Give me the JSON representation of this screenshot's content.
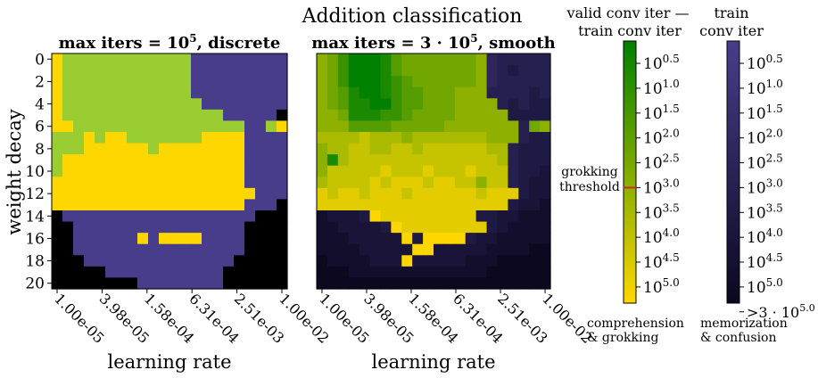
{
  "suptitle": "Addition classification",
  "chart_data": [
    {
      "type": "heatmap",
      "title": "max iters = 10^5, discrete",
      "title_parts": {
        "prefix": "max iters = 10",
        "exp": "5",
        "suffix": ", discrete"
      },
      "xlabel": "learning rate",
      "ylabel": "weight decay",
      "xticks": [
        "1.00e-05",
        "3.98e-05",
        "1.58e-04",
        "6.31e-04",
        "2.51e-03",
        "1.00e-02"
      ],
      "yticks": [
        "0",
        "2",
        "4",
        "6",
        "8",
        "10",
        "12",
        "14",
        "16",
        "18",
        "20"
      ],
      "legend_key": {
        "G": "comprehension",
        "Y": "grokking",
        "P": "memorization",
        "K": "confusion"
      },
      "colors": {
        "G": "#9acd32",
        "Y": "#ffd700",
        "P": "#483d8b",
        "K": "#000000"
      },
      "grid": [
        "YGGGGGGGGGGGGPPPPPPPPP",
        "YGGGGGGGGGGGGPPPPPPPPP",
        "YGGGGGGGGGGGGPPPPPPPPP",
        "YGGGGGGGGGGGGPPPPPPPPP",
        "YGGGGGGGGGGGGGPPPPPPPP",
        "YGGGGGGGGGGGGGGGPPPPPK",
        "YYGGGGGGGGGGGGGGGGPPGY",
        "GGGYGYYGGGGGGGYYYYPPPP",
        "GGGYYYYYYGYYYYYYYYPPPP",
        "GYYYYYYYYYYYYYYYYYPPPP",
        "GYYYYYYYYYYYYYYYYYPPPP",
        "YYYYYYYYYYYYYYYYYYPPPP",
        "YYYYYYYYYYYYYYYYYYYPPP",
        "YYYYYYYYYYYYYYYYYYPPPK",
        "KPPPPPPPPPPPPPPPPPPKKK",
        "KKPPPPPPPPPPPPPPPPKKKK",
        "KKPPPPPPYPYYYYPPPPKKKK",
        "KKPPPPPPPPPPPPPPPPKKKK",
        "KKKPPPPPPPPPPPPPPKKKKK",
        "KKKKKPPPPPPPPPPPKKKKKK",
        "KKKKKKKKPPPPPPPPKKKKKK"
      ]
    },
    {
      "type": "heatmap",
      "title": "max iters = 3·10^5, smooth",
      "title_parts": {
        "prefix": "max iters = 3 · 10",
        "exp": "5",
        "suffix": ", smooth"
      },
      "xlabel": "learning rate",
      "xticks": [
        "1.00e-05",
        "3.98e-05",
        "1.58e-04",
        "6.31e-04",
        "2.51e-03",
        "1.00e-02"
      ],
      "yticks_visible": false,
      "value_encoding": "G0-G9 = green scale, dark green (0) to yellow (9); P0-P9 = dark scale, purple (0) to black (9)",
      "green_scale_range": [
        "#008000",
        "#ffd700"
      ],
      "dark_scale_range": [
        "#483d8b",
        "#0b0820"
      ],
      "grid": [
        [
          "G5",
          "G4",
          "G2",
          "G0",
          "G0",
          "G0",
          "G1",
          "G3",
          "G4",
          "G4",
          "G4",
          "G4",
          "G4",
          "G4",
          "G4",
          "G5",
          "P4",
          "P5",
          "P5",
          "P5",
          "P5",
          "P5"
        ],
        [
          "G5",
          "G4",
          "G2",
          "G0",
          "G0",
          "G0",
          "G1",
          "G3",
          "G4",
          "G4",
          "G4",
          "G4",
          "G4",
          "G4",
          "G4",
          "G5",
          "P4",
          "P5",
          "P6",
          "P5",
          "P5",
          "P5"
        ],
        [
          "G5",
          "G4",
          "G2",
          "G0",
          "G0",
          "G0",
          "G1",
          "G2",
          "G3",
          "G4",
          "G4",
          "G4",
          "G4",
          "G4",
          "G4",
          "G5",
          "P4",
          "P5",
          "P5",
          "P5",
          "P5",
          "P5"
        ],
        [
          "G5",
          "G4",
          "G3",
          "G1",
          "G0",
          "G0",
          "G1",
          "G2",
          "G3",
          "G3",
          "G4",
          "G4",
          "G4",
          "G5",
          "G5",
          "G5",
          "P5",
          "P5",
          "P5",
          "P5",
          "P6",
          "P5"
        ],
        [
          "G5",
          "G4",
          "G3",
          "G1",
          "G1",
          "G0",
          "G0",
          "G2",
          "G3",
          "G3",
          "G4",
          "G4",
          "G4",
          "G5",
          "G5",
          "G5",
          "G5",
          "P5",
          "P6",
          "P5",
          "P6",
          "P6"
        ],
        [
          "G5",
          "G5",
          "G4",
          "G1",
          "G1",
          "G1",
          "G2",
          "G2",
          "G3",
          "G4",
          "G4",
          "G4",
          "G4",
          "G5",
          "G5",
          "G5",
          "G5",
          "G5",
          "P6",
          "P6",
          "P6",
          "P6"
        ],
        [
          "G5",
          "G5",
          "G5",
          "G3",
          "G3",
          "G3",
          "G3",
          "G4",
          "G4",
          "G4",
          "G4",
          "G4",
          "G5",
          "G5",
          "G5",
          "G5",
          "G5",
          "G5",
          "G5",
          "P5",
          "G4",
          "G5"
        ],
        [
          "G6",
          "G6",
          "G6",
          "G6",
          "G7",
          "G6",
          "G6",
          "G6",
          "G5",
          "G6",
          "G6",
          "G6",
          "G6",
          "G6",
          "G6",
          "G6",
          "G5",
          "G5",
          "G5",
          "P5",
          "P6",
          "P6"
        ],
        [
          "G5",
          "G6",
          "G6",
          "G7",
          "G7",
          "G6",
          "G6",
          "G7",
          "G7",
          "G6",
          "G7",
          "G7",
          "G7",
          "G7",
          "G7",
          "G7",
          "G6",
          "G6",
          "P5",
          "P6",
          "P6",
          "P6"
        ],
        [
          "G5",
          "G1",
          "G6",
          "G7",
          "G7",
          "G7",
          "G7",
          "G7",
          "G7",
          "G7",
          "G7",
          "G7",
          "G7",
          "G7",
          "G7",
          "G7",
          "G7",
          "G6",
          "P5",
          "P6",
          "P6",
          "P6"
        ],
        [
          "G5",
          "G7",
          "G7",
          "G7",
          "G7",
          "G7",
          "G8",
          "G7",
          "G7",
          "G7",
          "G8",
          "G7",
          "G7",
          "G7",
          "G8",
          "G7",
          "G7",
          "G7",
          "P5",
          "P6",
          "P6",
          "P7"
        ],
        [
          "G6",
          "G7",
          "G7",
          "G7",
          "G7",
          "G8",
          "G7",
          "G8",
          "G8",
          "G8",
          "G7",
          "G8",
          "G8",
          "G7",
          "G7",
          "G5",
          "G7",
          "G7",
          "P5",
          "P6",
          "P7",
          "P7"
        ],
        [
          "G8",
          "G7",
          "G8",
          "G8",
          "G7",
          "G8",
          "G8",
          "G8",
          "G7",
          "G8",
          "G8",
          "G8",
          "G8",
          "G8",
          "G8",
          "G7",
          "G8",
          "G8",
          "G8",
          "P6",
          "P7",
          "P7"
        ],
        [
          "G8",
          "G8",
          "G8",
          "G8",
          "G8",
          "G8",
          "G8",
          "G8",
          "G8",
          "G8",
          "G8",
          "G8",
          "G8",
          "G8",
          "G8",
          "G8",
          "G8",
          "G8",
          "P6",
          "P7",
          "P7",
          "P8"
        ],
        [
          "P8",
          "P7",
          "P7",
          "P7",
          "P6",
          "G9",
          "G8",
          "G8",
          "G8",
          "G8",
          "G8",
          "G8",
          "G8",
          "G8",
          "G8",
          "P6",
          "P6",
          "P7",
          "P7",
          "P8",
          "P8",
          "P8"
        ],
        [
          "P8",
          "P8",
          "P7",
          "P7",
          "P7",
          "P7",
          "P6",
          "G9",
          "G8",
          "G8",
          "G8",
          "G8",
          "G8",
          "G8",
          "G8",
          "G8",
          "P6",
          "P7",
          "P8",
          "P8",
          "P8",
          "P8"
        ],
        [
          "P8",
          "P8",
          "P8",
          "P7",
          "P7",
          "P7",
          "P7",
          "P7",
          "G9",
          "P6",
          "G9",
          "G9",
          "G9",
          "G9",
          "P6",
          "P7",
          "P7",
          "P8",
          "P8",
          "P8",
          "P8",
          "P8"
        ],
        [
          "P8",
          "P8",
          "P8",
          "P8",
          "P7",
          "P7",
          "P7",
          "P7",
          "P7",
          "G9",
          "G9",
          "P7",
          "P7",
          "P7",
          "P7",
          "P7",
          "P8",
          "P8",
          "P8",
          "P8",
          "P9",
          "P9"
        ],
        [
          "P9",
          "P8",
          "P8",
          "P8",
          "P8",
          "P7",
          "P7",
          "P7",
          "G9",
          "P7",
          "P7",
          "P7",
          "P7",
          "P7",
          "P8",
          "P8",
          "P8",
          "P9",
          "P9",
          "P9",
          "P9",
          "P9"
        ],
        [
          "P9",
          "P9",
          "P9",
          "P8",
          "P8",
          "P8",
          "P8",
          "P8",
          "P8",
          "P8",
          "P8",
          "P8",
          "P8",
          "P8",
          "P8",
          "P8",
          "P9",
          "P9",
          "P9",
          "P9",
          "P9",
          "P9"
        ],
        [
          "P9",
          "P9",
          "P9",
          "P9",
          "P9",
          "P9",
          "P9",
          "P9",
          "P9",
          "P9",
          "P9",
          "P9",
          "P9",
          "P9",
          "P9",
          "P9",
          "P9",
          "P9",
          "P9",
          "P9",
          "P9",
          "P9"
        ]
      ]
    }
  ],
  "colorbars": [
    {
      "title_lines": [
        "valid conv iter —",
        "train conv iter"
      ],
      "tick_mantissa": "10",
      "tick_exps": [
        "0.5",
        "1.0",
        "1.5",
        "2.0",
        "2.5",
        "3.0",
        "3.5",
        "4.0",
        "4.5",
        "5.0"
      ],
      "color_range": [
        "#008000",
        "#ffd700"
      ],
      "threshold_label_lines": [
        "grokking",
        "threshold"
      ],
      "threshold_exp": 3.0,
      "threshold_color": "#d62728",
      "bottom_label_lines": [
        "comprehension",
        "& grokking"
      ]
    },
    {
      "title_lines": [
        "train",
        "conv iter"
      ],
      "tick_mantissa": "10",
      "tick_exps": [
        "0.5",
        "1.0",
        "1.5",
        "2.0",
        "2.5",
        "3.0",
        "3.5",
        "4.0",
        "4.5",
        "5.0"
      ],
      "last_tick": {
        "prefix": ">3 · 10",
        "exp": "5.0"
      },
      "color_range": [
        "#483d8b",
        "#0b0820"
      ],
      "bottom_label_lines": [
        "memorization",
        "& confusion"
      ]
    }
  ]
}
